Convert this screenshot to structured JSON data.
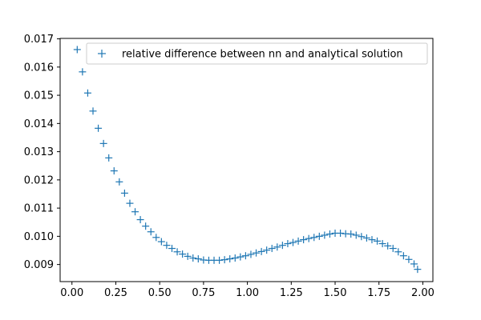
{
  "chart_data": {
    "type": "scatter",
    "title": "",
    "xlabel": "",
    "ylabel": "",
    "xlim": [
      -0.0674,
      2.0574
    ],
    "ylim": [
      0.008394,
      0.017016
    ],
    "xticks": [
      0.0,
      0.25,
      0.5,
      0.75,
      1.0,
      1.25,
      1.5,
      1.75,
      2.0
    ],
    "xtick_labels": [
      "0.00",
      "0.25",
      "0.50",
      "0.75",
      "1.00",
      "1.25",
      "1.50",
      "1.75",
      "2.00"
    ],
    "yticks": [
      0.009,
      0.01,
      0.011,
      0.012,
      0.013,
      0.014,
      0.015,
      0.016,
      0.017
    ],
    "ytick_labels": [
      "0.009",
      "0.010",
      "0.011",
      "0.012",
      "0.013",
      "0.014",
      "0.015",
      "0.016",
      "0.017"
    ],
    "grid": false,
    "legend_position": "upper right",
    "marker": "+",
    "series": [
      {
        "name": "relative difference between nn and analytical solution",
        "color": "#1f77b4",
        "x": [
          0.03,
          0.06,
          0.09,
          0.12,
          0.15,
          0.18,
          0.21,
          0.24,
          0.27,
          0.3,
          0.33,
          0.36,
          0.39,
          0.42,
          0.45,
          0.48,
          0.51,
          0.54,
          0.57,
          0.6,
          0.63,
          0.66,
          0.69,
          0.72,
          0.75,
          0.78,
          0.81,
          0.84,
          0.87,
          0.9,
          0.93,
          0.96,
          0.99,
          1.02,
          1.05,
          1.08,
          1.11,
          1.14,
          1.17,
          1.2,
          1.23,
          1.26,
          1.29,
          1.32,
          1.35,
          1.38,
          1.41,
          1.44,
          1.47,
          1.5,
          1.53,
          1.56,
          1.59,
          1.62,
          1.65,
          1.68,
          1.71,
          1.74,
          1.77,
          1.8,
          1.83,
          1.86,
          1.89,
          1.92,
          1.95,
          1.97
        ],
        "y": [
          0.01662,
          0.01583,
          0.01508,
          0.01444,
          0.01383,
          0.01329,
          0.01278,
          0.01232,
          0.01193,
          0.01153,
          0.01117,
          0.01087,
          0.01059,
          0.01036,
          0.01016,
          0.00996,
          0.00981,
          0.00968,
          0.00957,
          0.00945,
          0.00937,
          0.00929,
          0.00923,
          0.0092,
          0.00916,
          0.00915,
          0.00915,
          0.00915,
          0.00917,
          0.0092,
          0.00923,
          0.00927,
          0.00931,
          0.00936,
          0.00941,
          0.00946,
          0.00951,
          0.00957,
          0.00962,
          0.00968,
          0.00974,
          0.00978,
          0.00983,
          0.00988,
          0.00992,
          0.00996,
          0.01,
          0.01004,
          0.01008,
          0.01011,
          0.01011,
          0.01009,
          0.01008,
          0.01004,
          0.00999,
          0.00994,
          0.00988,
          0.00983,
          0.00974,
          0.00966,
          0.00957,
          0.00945,
          0.00931,
          0.00918,
          0.00902,
          0.00883
        ]
      }
    ]
  }
}
